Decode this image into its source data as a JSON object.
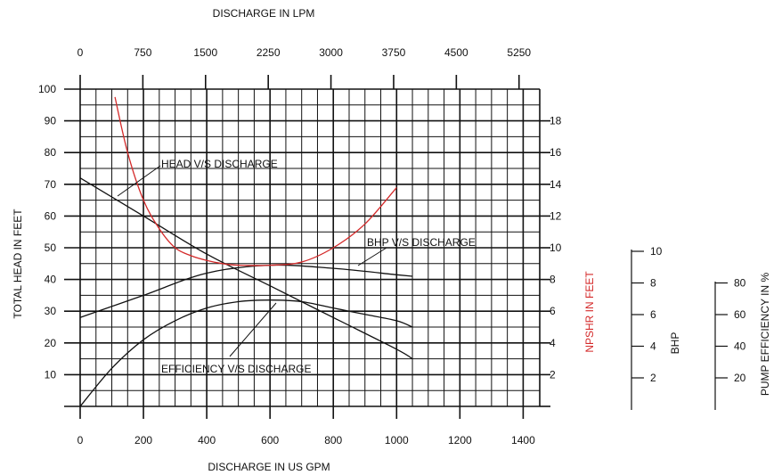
{
  "colors": {
    "curve": "#111111",
    "npshr": "#d42a2a",
    "grid": "#111111"
  },
  "chart_data": {
    "type": "line",
    "axes": {
      "top": {
        "label": "DISCHARGE IN LPM",
        "ticks": [
          "0",
          "750",
          "1500",
          "2250",
          "3000",
          "3750",
          "4500",
          "5250"
        ]
      },
      "bottom": {
        "label": "DISCHARGE IN US GPM",
        "ticks": [
          "0",
          "200",
          "400",
          "600",
          "800",
          "1000",
          "1200",
          "1400"
        ],
        "xlim": [
          0,
          1400
        ]
      },
      "left": {
        "label": "TOTAL HEAD IN FEET",
        "ticks": [
          "10",
          "20",
          "30",
          "40",
          "50",
          "60",
          "70",
          "80",
          "90",
          "100"
        ],
        "ylim": [
          0,
          100
        ]
      },
      "right": {
        "label": "NPSHR IN FEET",
        "ticks": [
          "2",
          "4",
          "6",
          "8",
          "10",
          "12",
          "14",
          "16",
          "18"
        ],
        "ylim": [
          0,
          20
        ]
      },
      "bhp": {
        "label": "BHP",
        "ticks": [
          "2",
          "4",
          "6",
          "8",
          "10"
        ]
      },
      "eff": {
        "label": "PUMP EFFICIENCY IN %",
        "ticks": [
          "20",
          "40",
          "60",
          "80"
        ]
      }
    },
    "grid": true,
    "series": [
      {
        "name": "HEAD V/S DISCHARGE",
        "axis": "head",
        "x": [
          0,
          200,
          400,
          600,
          800,
          1000,
          1050
        ],
        "y": [
          72,
          60,
          48,
          38,
          28,
          18,
          15
        ]
      },
      {
        "name": "BHP V/S DISCHARGE",
        "axis": "head",
        "x": [
          0,
          200,
          400,
          600,
          800,
          1000,
          1050
        ],
        "y": [
          28,
          35,
          42,
          44.5,
          43.5,
          41.5,
          41
        ]
      },
      {
        "name": "EFFICIENCY V/S DISCHARGE",
        "axis": "head",
        "x": [
          0,
          100,
          200,
          300,
          400,
          500,
          600,
          700,
          800,
          900,
          1000,
          1050
        ],
        "y": [
          0,
          12,
          21,
          27,
          31,
          33,
          33.5,
          33,
          31,
          29,
          27,
          25
        ]
      },
      {
        "name": "",
        "axis": "npshr",
        "x": [
          110,
          150,
          200,
          250,
          300,
          350,
          400,
          450,
          500,
          600,
          700,
          800,
          900,
          1000
        ],
        "y": [
          19.5,
          16,
          13,
          11.2,
          10,
          9.5,
          9.2,
          9,
          8.9,
          8.9,
          9.1,
          10,
          11.5,
          13.8
        ]
      }
    ],
    "annotations": [
      "HEAD V/S DISCHARGE",
      "BHP V/S DISCHARGE",
      "EFFICIENCY V/S DISCHARGE"
    ]
  }
}
